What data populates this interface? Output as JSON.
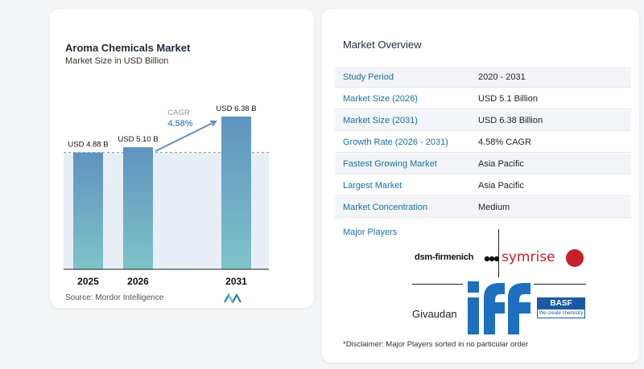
{
  "chart_data": {
    "type": "bar",
    "title": "Aroma Chemicals Market",
    "subtitle": "Market Size in USD Billion",
    "categories": [
      "2025",
      "2026",
      "2031"
    ],
    "values": [
      4.88,
      5.1,
      6.38
    ],
    "data_labels": [
      "USD 4.88 B",
      "USD 5.10 B",
      "USD 6.38 B"
    ],
    "cagr_label": "CAGR",
    "cagr_value": "4.58%",
    "reference_line_value": 4.88,
    "ylim": [
      0,
      6.38
    ],
    "bar_color_top": "#5f93bf",
    "bar_color_bottom": "#7fc3c8",
    "accent": "#5d8fbf"
  },
  "source": "Source: Mordor Intelligence",
  "overview": {
    "title": "Market Overview",
    "rows": [
      {
        "key": "Study Period",
        "value": "2020 - 2031"
      },
      {
        "key": "Market Size (2026)",
        "value": "USD 5.1 Billion"
      },
      {
        "key": "Market Size (2031)",
        "value": "USD 6.38 Billion"
      },
      {
        "key": "Growth Rate (2026 - 2031)",
        "value": "4.58% CAGR"
      },
      {
        "key": "Fastest Growing Market",
        "value": "Asia Pacific"
      },
      {
        "key": "Largest Market",
        "value": "Asia Pacific"
      },
      {
        "key": "Market Concentration",
        "value": "Medium"
      }
    ],
    "major_players_label": "Major Players",
    "players": {
      "dsm": "dsm-firmenich",
      "symrise": "symrise",
      "givaudan": "Givaudan",
      "iff": "iff",
      "basf": "BASF",
      "basf_tagline": "We create chemistry"
    },
    "disclaimer": "*Disclaimer: Major Players sorted in no particular order"
  }
}
